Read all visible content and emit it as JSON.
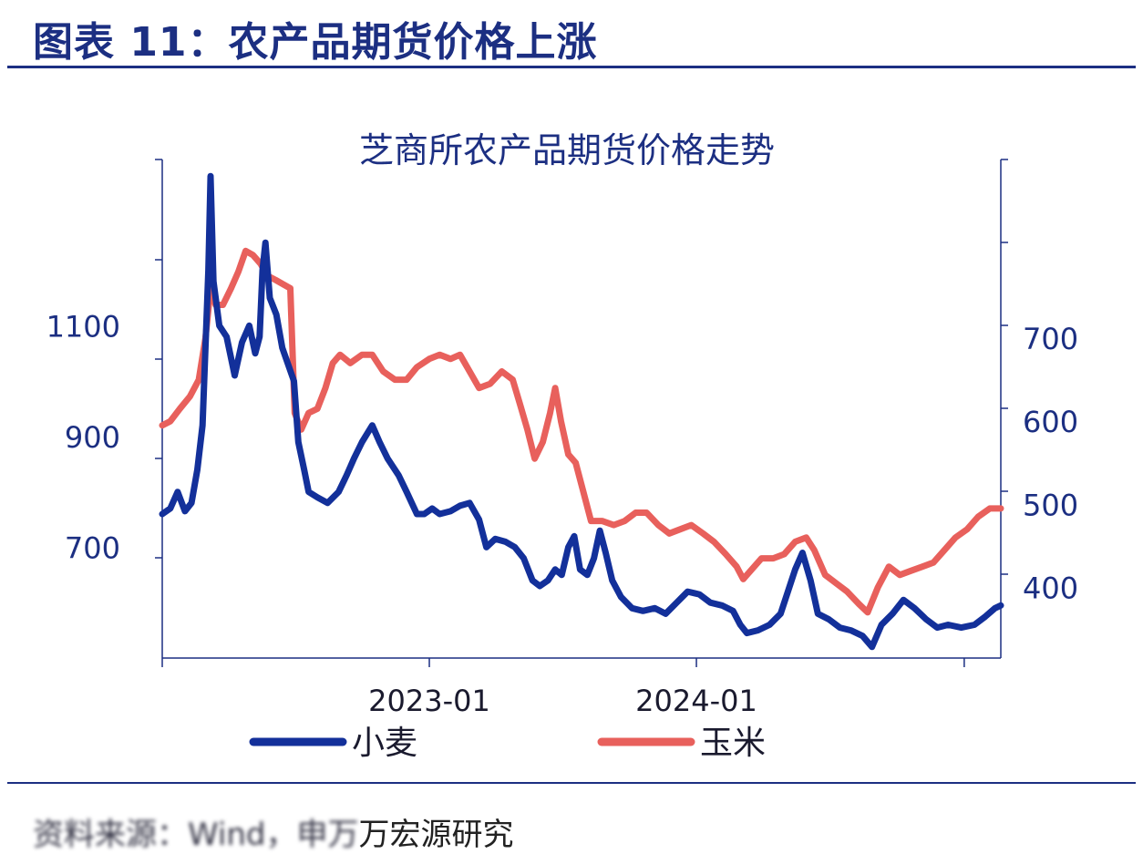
{
  "header": {
    "title": "图表 11：农产品期货价格上涨"
  },
  "source": {
    "blurred_prefix": "资料来源：Wind，申万",
    "text": "万宏源研究"
  },
  "colors": {
    "wheat": "#13309a",
    "corn": "#e8605c",
    "axis": "#1c2f82",
    "rule": "#1c2f82"
  },
  "chart_data": {
    "type": "line",
    "title": "芝商所农产品期货价格走势",
    "xlabel": "",
    "ylabel": "",
    "x_ticks": [
      "2023-01",
      "2024-01"
    ],
    "left_axis": {
      "ticks": [
        700,
        900,
        1100
      ],
      "range": [
        500,
        1400
      ]
    },
    "right_axis": {
      "ticks": [
        400,
        500,
        600,
        700
      ],
      "range": [
        315,
        915
      ]
    },
    "x_range": [
      "2022-01-01",
      "2025-02-20"
    ],
    "legend_position": "bottom",
    "series": [
      {
        "name": "小麦",
        "axis": "left",
        "color": "#13309a",
        "points": [
          [
            "2022-01-01",
            760
          ],
          [
            "2022-01-12",
            770
          ],
          [
            "2022-01-22",
            800
          ],
          [
            "2022-02-01",
            765
          ],
          [
            "2022-02-10",
            780
          ],
          [
            "2022-02-18",
            840
          ],
          [
            "2022-02-25",
            920
          ],
          [
            "2022-03-01",
            1060
          ],
          [
            "2022-03-05",
            1200
          ],
          [
            "2022-03-08",
            1370
          ],
          [
            "2022-03-12",
            1180
          ],
          [
            "2022-03-20",
            1100
          ],
          [
            "2022-03-30",
            1080
          ],
          [
            "2022-04-10",
            1010
          ],
          [
            "2022-04-20",
            1070
          ],
          [
            "2022-04-30",
            1100
          ],
          [
            "2022-05-08",
            1050
          ],
          [
            "2022-05-14",
            1080
          ],
          [
            "2022-05-18",
            1200
          ],
          [
            "2022-05-22",
            1250
          ],
          [
            "2022-05-28",
            1150
          ],
          [
            "2022-06-06",
            1120
          ],
          [
            "2022-06-14",
            1060
          ],
          [
            "2022-06-22",
            1030
          ],
          [
            "2022-06-30",
            1000
          ],
          [
            "2022-07-06",
            890
          ],
          [
            "2022-07-14",
            840
          ],
          [
            "2022-07-20",
            800
          ],
          [
            "2022-08-01",
            790
          ],
          [
            "2022-08-15",
            780
          ],
          [
            "2022-08-30",
            800
          ],
          [
            "2022-09-10",
            830
          ],
          [
            "2022-09-20",
            860
          ],
          [
            "2022-10-01",
            890
          ],
          [
            "2022-10-15",
            920
          ],
          [
            "2022-10-25",
            890
          ],
          [
            "2022-11-05",
            860
          ],
          [
            "2022-11-20",
            830
          ],
          [
            "2022-12-01",
            800
          ],
          [
            "2022-12-15",
            760
          ],
          [
            "2022-12-25",
            760
          ],
          [
            "2023-01-05",
            770
          ],
          [
            "2023-01-15",
            760
          ],
          [
            "2023-01-30",
            765
          ],
          [
            "2023-02-12",
            775
          ],
          [
            "2023-02-25",
            780
          ],
          [
            "2023-03-10",
            750
          ],
          [
            "2023-03-20",
            700
          ],
          [
            "2023-04-01",
            715
          ],
          [
            "2023-04-15",
            710
          ],
          [
            "2023-04-28",
            700
          ],
          [
            "2023-05-10",
            680
          ],
          [
            "2023-05-22",
            640
          ],
          [
            "2023-06-01",
            630
          ],
          [
            "2023-06-12",
            640
          ],
          [
            "2023-06-22",
            660
          ],
          [
            "2023-07-01",
            650
          ],
          [
            "2023-07-10",
            700
          ],
          [
            "2023-07-18",
            720
          ],
          [
            "2023-07-26",
            660
          ],
          [
            "2023-08-05",
            650
          ],
          [
            "2023-08-14",
            680
          ],
          [
            "2023-08-22",
            730
          ],
          [
            "2023-08-30",
            690
          ],
          [
            "2023-09-08",
            640
          ],
          [
            "2023-09-20",
            610
          ],
          [
            "2023-10-05",
            590
          ],
          [
            "2023-10-20",
            585
          ],
          [
            "2023-11-05",
            590
          ],
          [
            "2023-11-20",
            580
          ],
          [
            "2023-12-05",
            600
          ],
          [
            "2023-12-20",
            620
          ],
          [
            "2024-01-05",
            615
          ],
          [
            "2024-01-20",
            600
          ],
          [
            "2024-02-05",
            595
          ],
          [
            "2024-02-20",
            585
          ],
          [
            "2024-03-01",
            560
          ],
          [
            "2024-03-10",
            545
          ],
          [
            "2024-03-25",
            550
          ],
          [
            "2024-04-10",
            560
          ],
          [
            "2024-04-25",
            580
          ],
          [
            "2024-05-05",
            620
          ],
          [
            "2024-05-15",
            660
          ],
          [
            "2024-05-25",
            690
          ],
          [
            "2024-06-05",
            640
          ],
          [
            "2024-06-15",
            580
          ],
          [
            "2024-06-30",
            570
          ],
          [
            "2024-07-15",
            555
          ],
          [
            "2024-07-30",
            550
          ],
          [
            "2024-08-15",
            540
          ],
          [
            "2024-08-28",
            520
          ],
          [
            "2024-09-10",
            560
          ],
          [
            "2024-09-25",
            580
          ],
          [
            "2024-10-10",
            605
          ],
          [
            "2024-10-25",
            590
          ],
          [
            "2024-11-10",
            570
          ],
          [
            "2024-11-25",
            555
          ],
          [
            "2024-12-10",
            560
          ],
          [
            "2024-12-28",
            555
          ],
          [
            "2025-01-15",
            560
          ],
          [
            "2025-01-30",
            575
          ],
          [
            "2025-02-12",
            590
          ],
          [
            "2025-02-20",
            595
          ]
        ]
      },
      {
        "name": "玉米",
        "axis": "right",
        "color": "#e8605c",
        "points": [
          [
            "2022-01-01",
            595
          ],
          [
            "2022-01-12",
            600
          ],
          [
            "2022-01-25",
            615
          ],
          [
            "2022-02-08",
            630
          ],
          [
            "2022-02-20",
            650
          ],
          [
            "2022-03-01",
            700
          ],
          [
            "2022-03-08",
            760
          ],
          [
            "2022-03-15",
            740
          ],
          [
            "2022-03-25",
            740
          ],
          [
            "2022-04-05",
            760
          ],
          [
            "2022-04-15",
            780
          ],
          [
            "2022-04-25",
            805
          ],
          [
            "2022-05-05",
            800
          ],
          [
            "2022-05-15",
            790
          ],
          [
            "2022-05-25",
            775
          ],
          [
            "2022-06-05",
            770
          ],
          [
            "2022-06-15",
            765
          ],
          [
            "2022-06-25",
            760
          ],
          [
            "2022-07-01",
            610
          ],
          [
            "2022-07-10",
            590
          ],
          [
            "2022-07-20",
            610
          ],
          [
            "2022-08-01",
            615
          ],
          [
            "2022-08-12",
            640
          ],
          [
            "2022-08-22",
            670
          ],
          [
            "2022-09-01",
            680
          ],
          [
            "2022-09-15",
            670
          ],
          [
            "2022-10-01",
            680
          ],
          [
            "2022-10-15",
            680
          ],
          [
            "2022-10-30",
            660
          ],
          [
            "2022-11-15",
            650
          ],
          [
            "2022-12-01",
            650
          ],
          [
            "2022-12-15",
            665
          ],
          [
            "2023-01-01",
            675
          ],
          [
            "2023-01-15",
            680
          ],
          [
            "2023-01-30",
            675
          ],
          [
            "2023-02-12",
            680
          ],
          [
            "2023-02-25",
            660
          ],
          [
            "2023-03-10",
            640
          ],
          [
            "2023-03-25",
            645
          ],
          [
            "2023-04-10",
            660
          ],
          [
            "2023-04-25",
            650
          ],
          [
            "2023-05-05",
            620
          ],
          [
            "2023-05-15",
            590
          ],
          [
            "2023-05-25",
            555
          ],
          [
            "2023-06-05",
            575
          ],
          [
            "2023-06-15",
            610
          ],
          [
            "2023-06-22",
            640
          ],
          [
            "2023-06-30",
            600
          ],
          [
            "2023-07-10",
            560
          ],
          [
            "2023-07-20",
            550
          ],
          [
            "2023-08-01",
            510
          ],
          [
            "2023-08-10",
            480
          ],
          [
            "2023-08-25",
            480
          ],
          [
            "2023-09-10",
            475
          ],
          [
            "2023-09-25",
            480
          ],
          [
            "2023-10-10",
            490
          ],
          [
            "2023-10-25",
            490
          ],
          [
            "2023-11-10",
            475
          ],
          [
            "2023-11-25",
            465
          ],
          [
            "2023-12-10",
            470
          ],
          [
            "2023-12-25",
            475
          ],
          [
            "2024-01-10",
            465
          ],
          [
            "2024-01-25",
            455
          ],
          [
            "2024-02-10",
            440
          ],
          [
            "2024-02-25",
            425
          ],
          [
            "2024-03-05",
            410
          ],
          [
            "2024-03-15",
            420
          ],
          [
            "2024-03-30",
            435
          ],
          [
            "2024-04-15",
            435
          ],
          [
            "2024-04-30",
            440
          ],
          [
            "2024-05-15",
            455
          ],
          [
            "2024-05-30",
            460
          ],
          [
            "2024-06-10",
            445
          ],
          [
            "2024-06-25",
            415
          ],
          [
            "2024-07-10",
            405
          ],
          [
            "2024-07-25",
            395
          ],
          [
            "2024-08-10",
            380
          ],
          [
            "2024-08-22",
            370
          ],
          [
            "2024-09-05",
            400
          ],
          [
            "2024-09-20",
            425
          ],
          [
            "2024-10-05",
            415
          ],
          [
            "2024-10-20",
            420
          ],
          [
            "2024-11-05",
            425
          ],
          [
            "2024-11-20",
            430
          ],
          [
            "2024-12-05",
            445
          ],
          [
            "2024-12-20",
            460
          ],
          [
            "2025-01-05",
            470
          ],
          [
            "2025-01-20",
            485
          ],
          [
            "2025-02-05",
            495
          ],
          [
            "2025-02-20",
            495
          ]
        ]
      }
    ]
  }
}
